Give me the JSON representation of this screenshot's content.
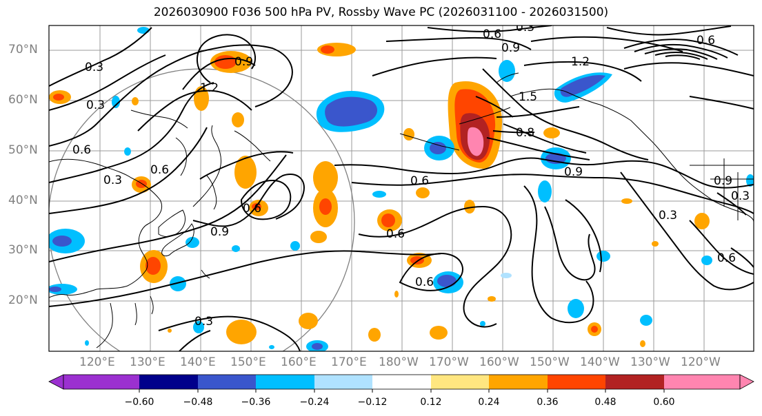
{
  "title": "2026030900 F036 500 hPa PV, Rossby Wave PC (2026031100 - 2026031500)",
  "lat_labels": [
    "70°N",
    "60°N",
    "50°N",
    "40°N",
    "30°N",
    "20°N"
  ],
  "lon_labels": [
    "120°E",
    "130°E",
    "140°E",
    "150°E",
    "160°E",
    "170°E",
    "180°W",
    "170°W",
    "160°W",
    "150°W",
    "140°W",
    "130°W",
    "120°W"
  ],
  "contour_labels": [
    "0.3",
    "0.3",
    "0.6",
    "0.3",
    "0.6",
    "1.2",
    "0.9",
    "0.6",
    "0.9",
    "0.6",
    "0.6",
    "1.2",
    "0.9",
    "0.6",
    "0.3",
    "1.5",
    "0.9",
    "0.3",
    "0.3",
    "0.6",
    "0.3",
    "0.9",
    "0.8",
    "0.6",
    "0.6"
  ],
  "colorbar": {
    "ticks": [
      "−0.60",
      "−0.48",
      "−0.36",
      "−0.24",
      "−0.12",
      "0.12",
      "0.24",
      "0.36",
      "0.48",
      "0.60"
    ],
    "colors": [
      "#9b30d0",
      "#00008b",
      "#3a56cc",
      "#00bfff",
      "#b0e2ff",
      "#ffffff",
      "#ffe680",
      "#ffa500",
      "#ff4500",
      "#b22222",
      "#ff85b0"
    ]
  }
}
